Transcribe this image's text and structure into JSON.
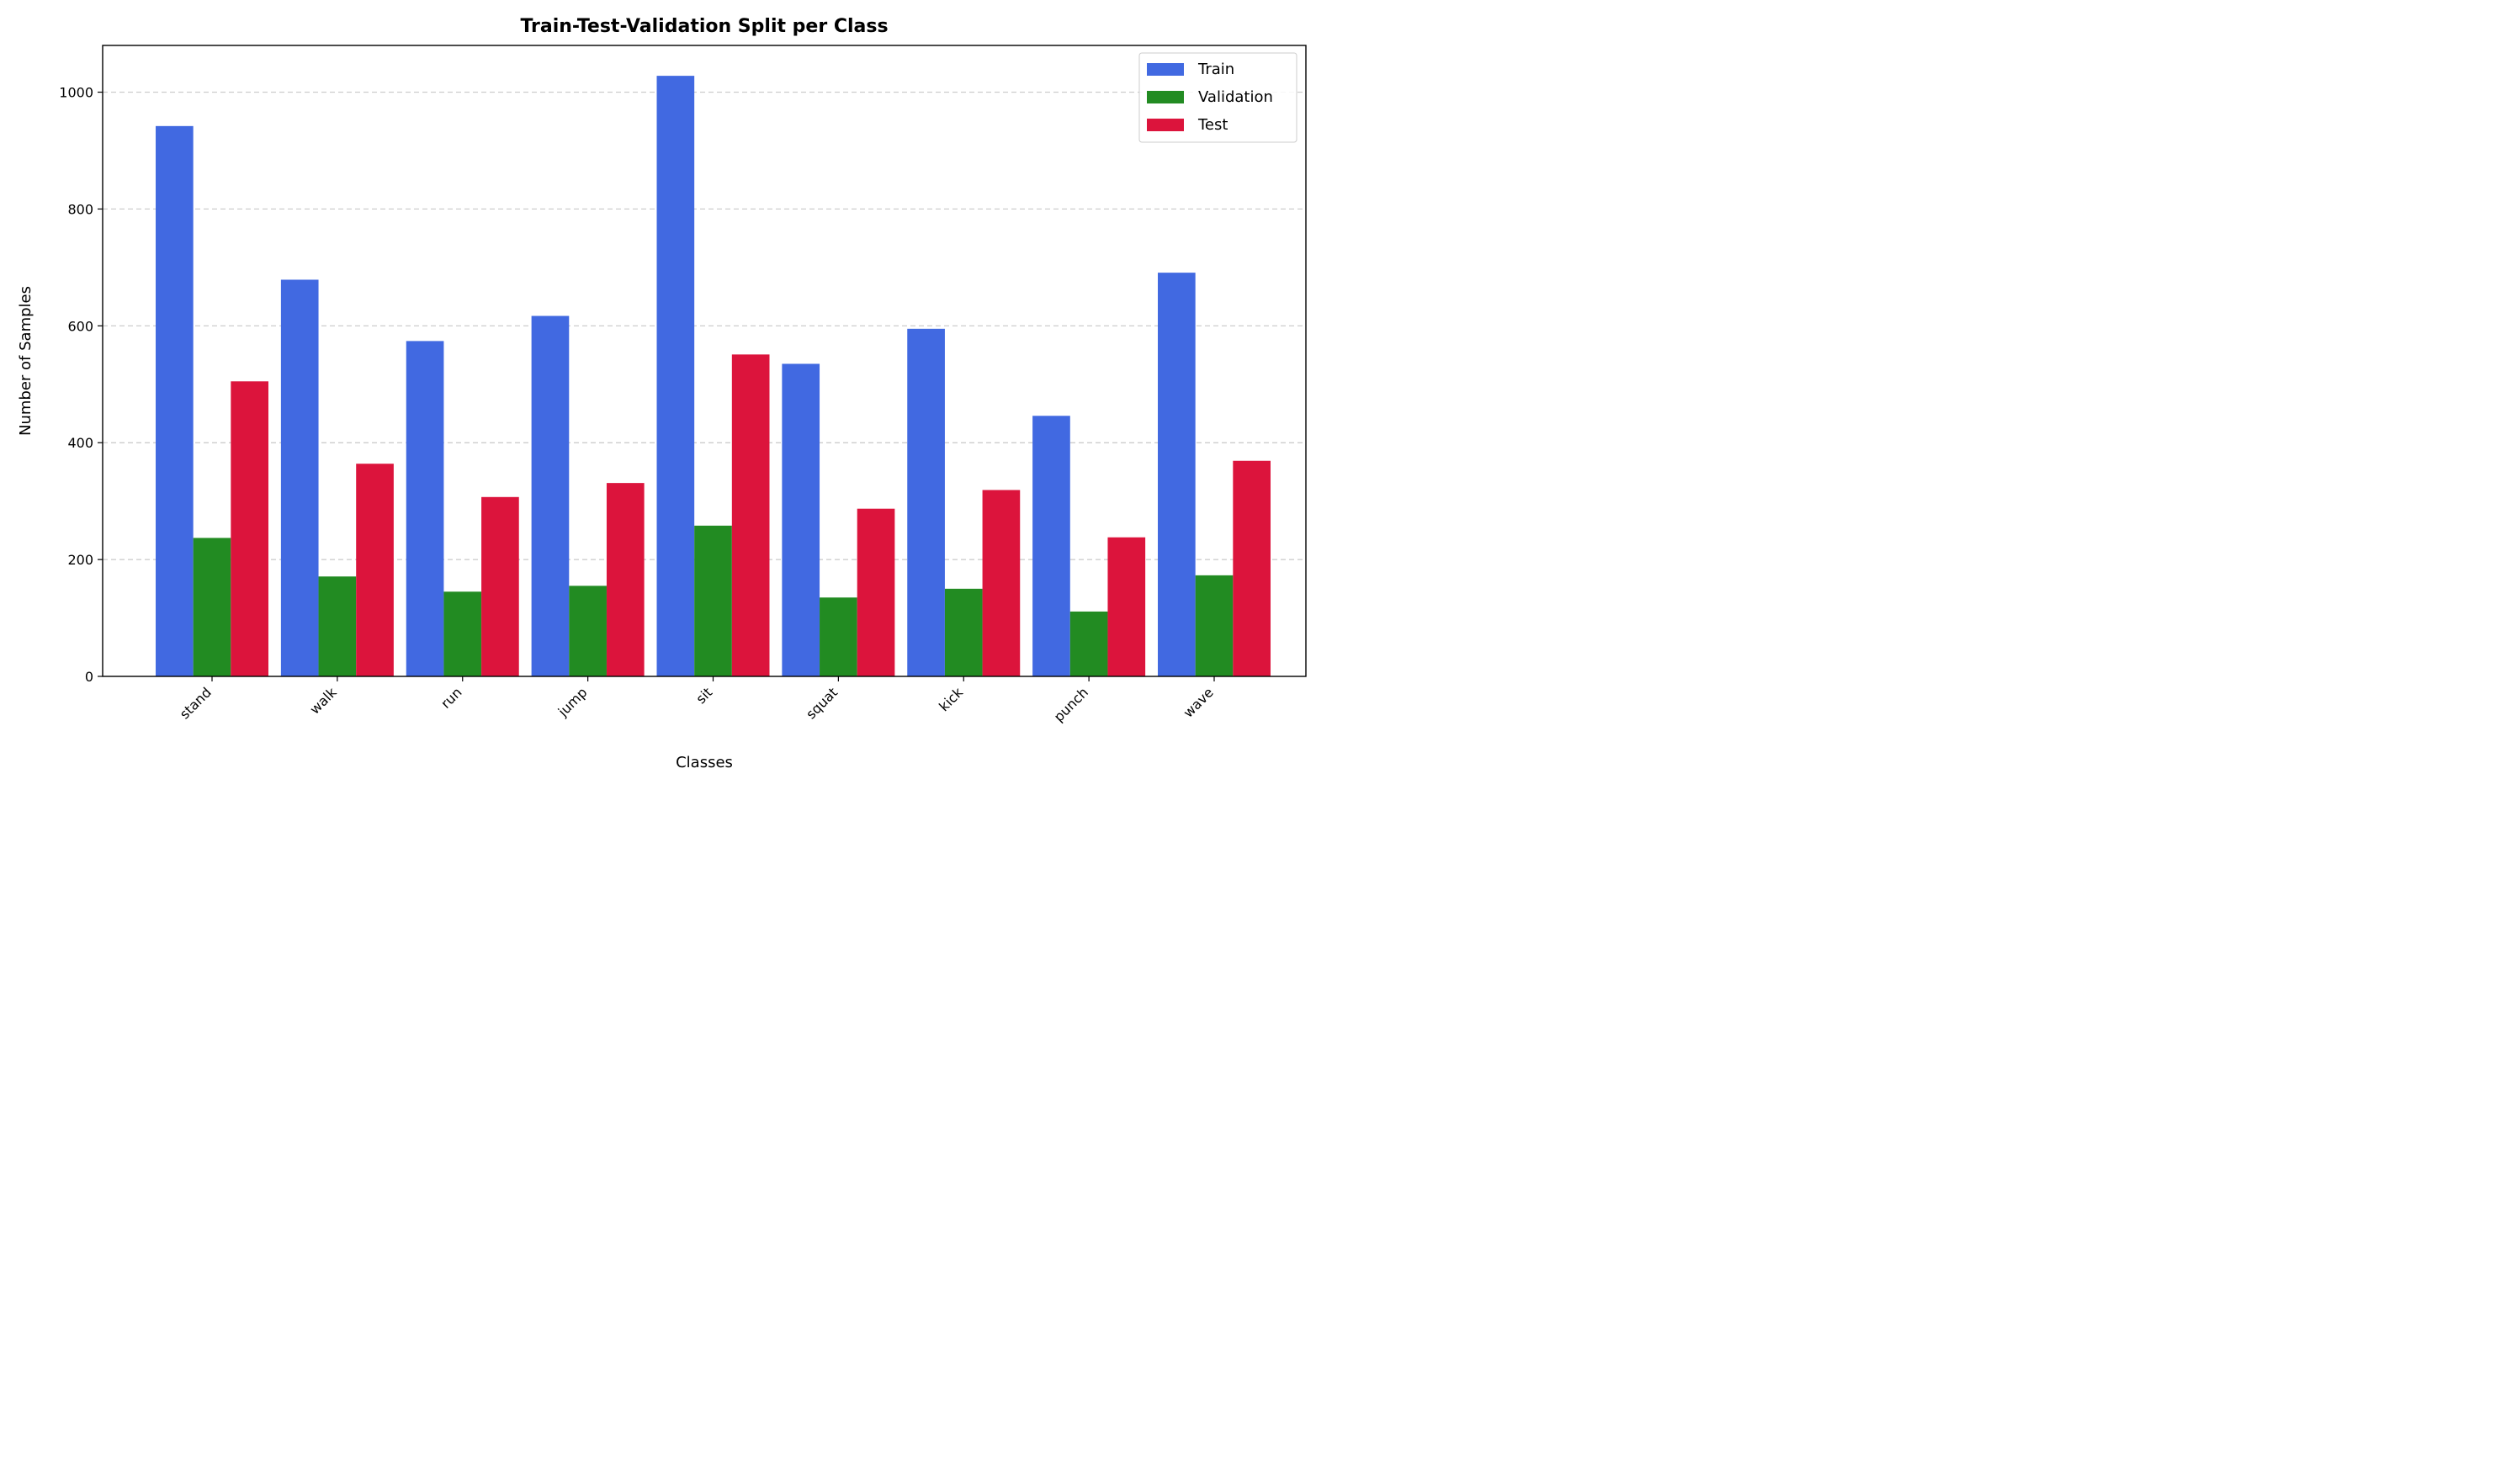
{
  "chart_data": {
    "type": "bar",
    "title": "Train-Test-Validation Split per Class",
    "xlabel": "Classes",
    "ylabel": "Number of Samples",
    "categories": [
      "stand",
      "walk",
      "run",
      "jump",
      "sit",
      "squat",
      "kick",
      "punch",
      "wave"
    ],
    "series": [
      {
        "name": "Train",
        "color": "#4169E1",
        "values": [
          942,
          679,
          574,
          617,
          1028,
          535,
          595,
          446,
          691
        ]
      },
      {
        "name": "Validation",
        "color": "#228B22",
        "values": [
          237,
          171,
          145,
          155,
          258,
          135,
          150,
          111,
          173
        ]
      },
      {
        "name": "Test",
        "color": "#DC143C",
        "values": [
          505,
          364,
          307,
          331,
          551,
          287,
          319,
          238,
          369
        ]
      }
    ],
    "ylim": [
      0,
      1080
    ],
    "yticks": [
      "0",
      "200",
      "400",
      "600",
      "800",
      "1000"
    ],
    "grid": "y-dashed",
    "legend_position": "top-right"
  }
}
